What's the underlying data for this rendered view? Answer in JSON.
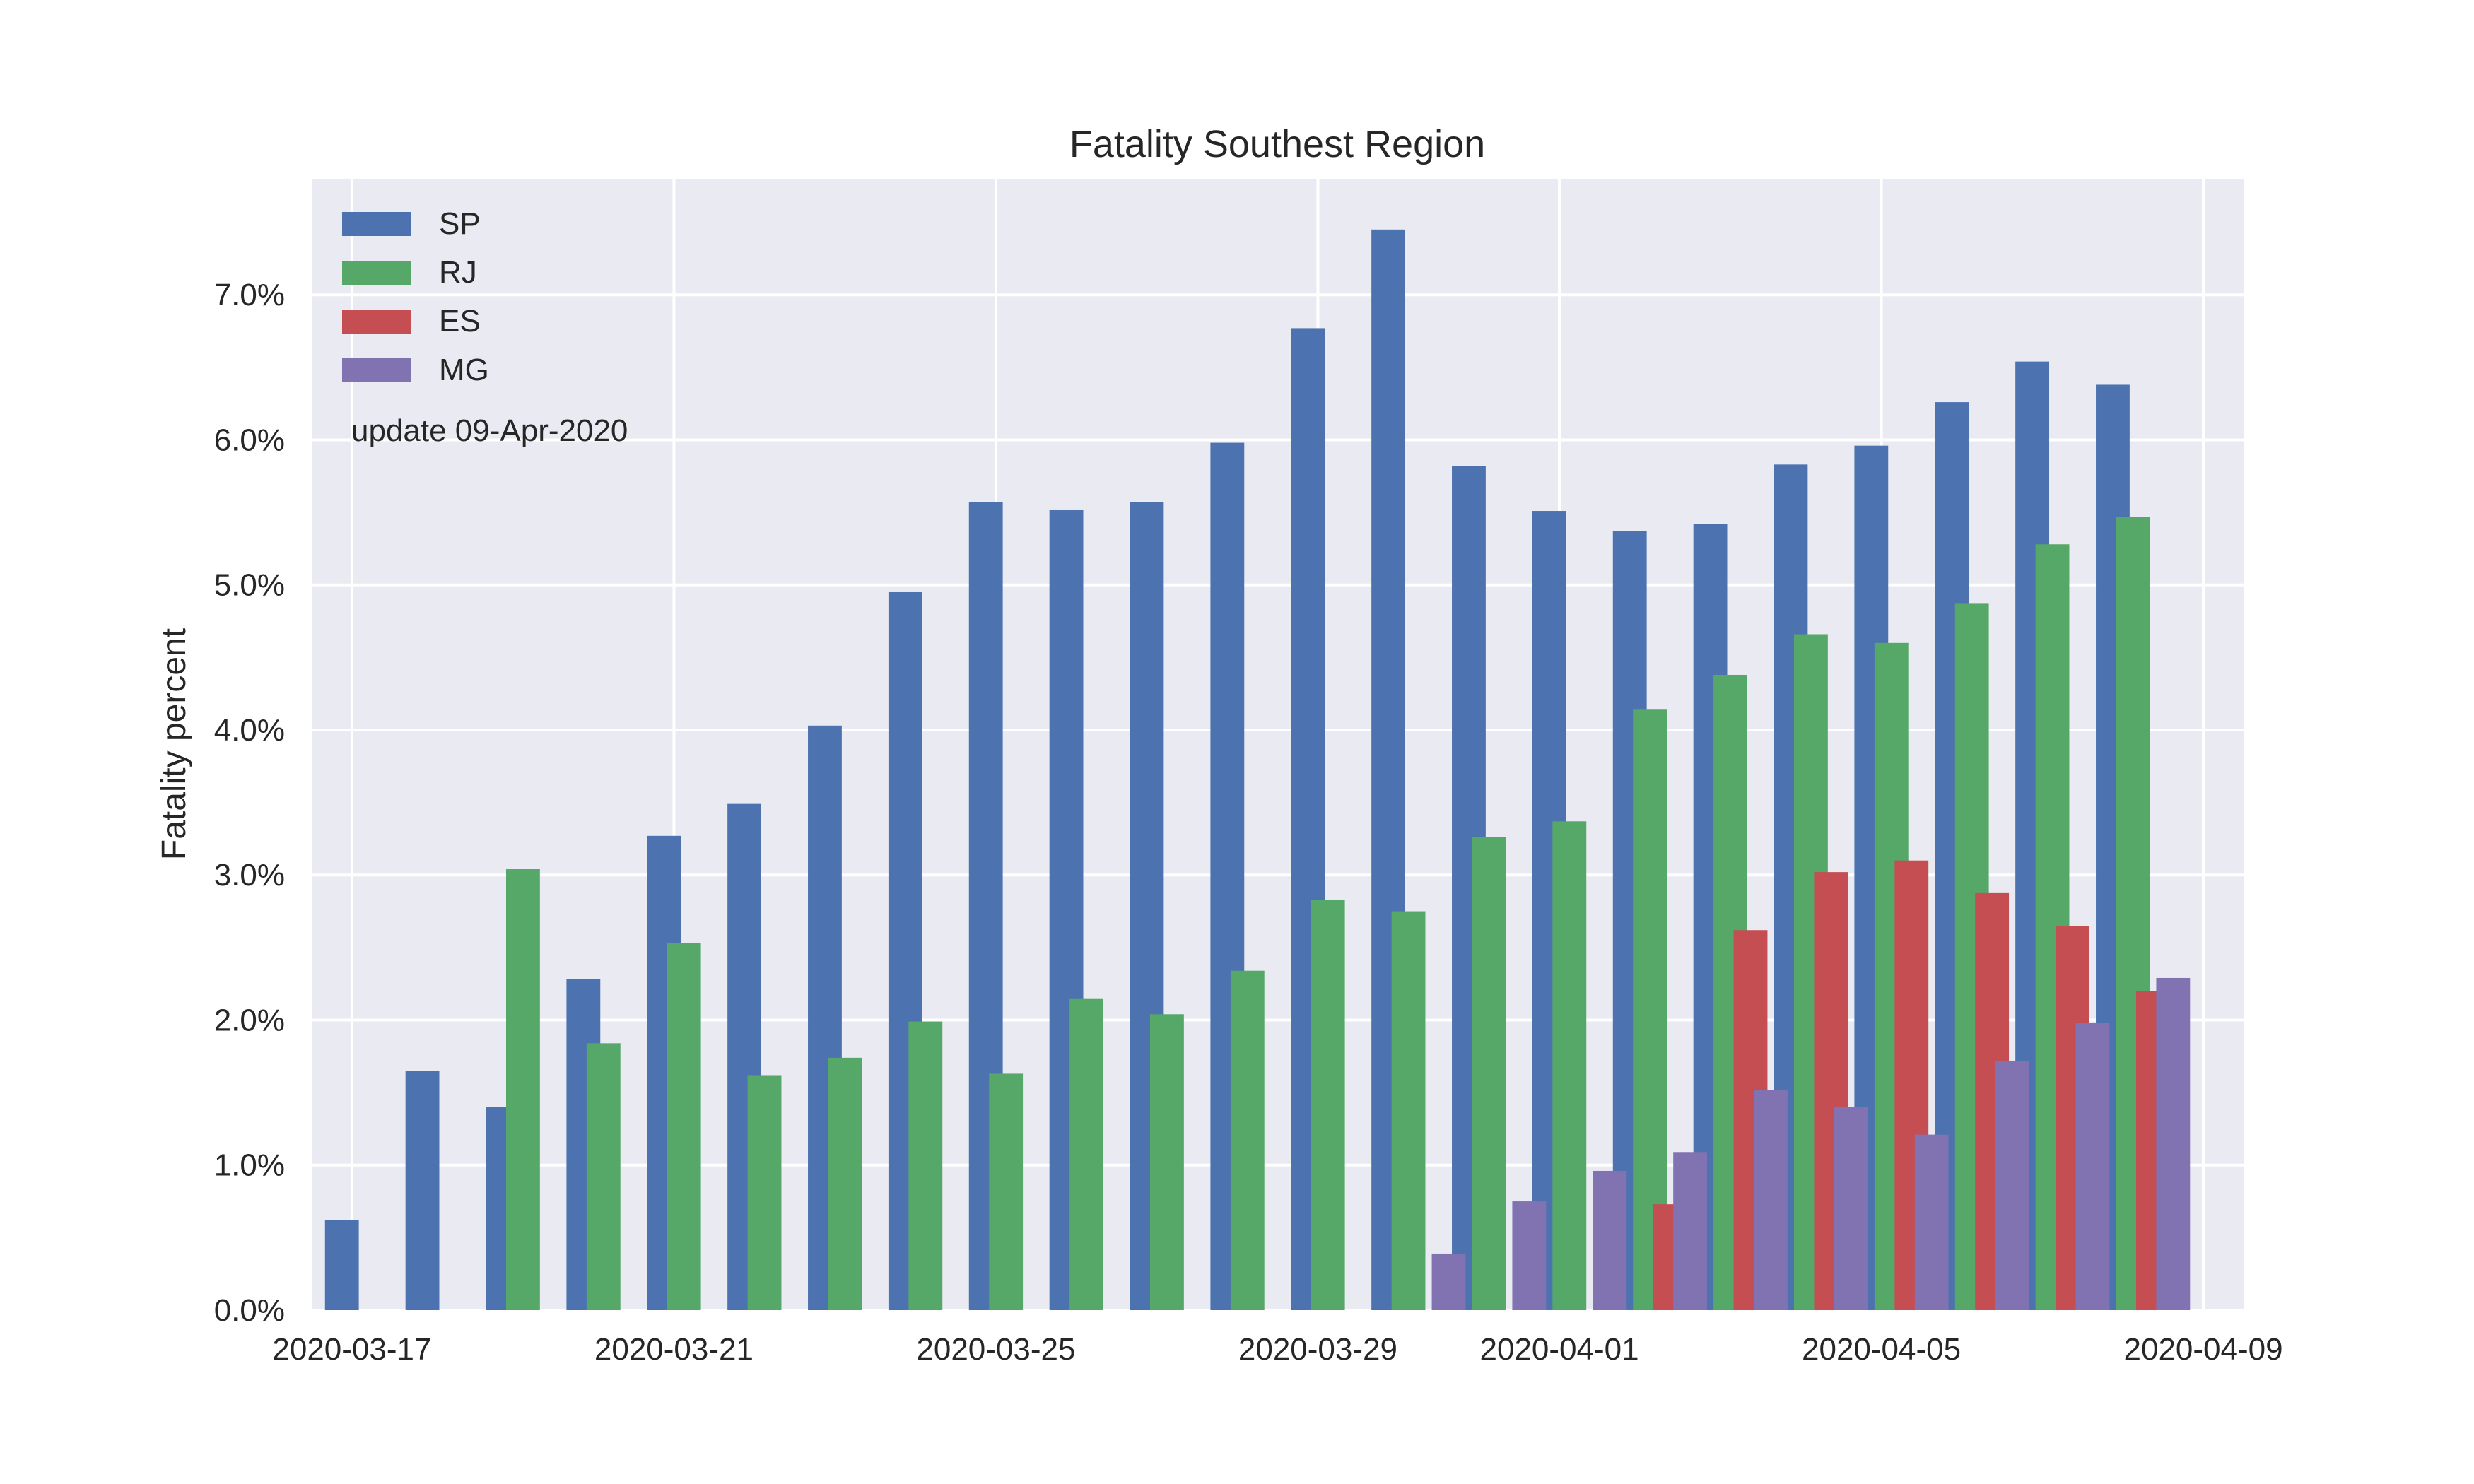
{
  "chart_data": {
    "type": "bar",
    "title": "Fatality Southest Region",
    "xlabel": "",
    "ylabel": "Fatality percent",
    "annotation": "update 09-Apr-2020",
    "legend_position": "top-left",
    "grid": true,
    "colors": {
      "background": "#EAEAF2",
      "grid": "#FFFFFF"
    },
    "ylim": [
      0,
      7.8
    ],
    "yticks": [
      0,
      1,
      2,
      3,
      4,
      5,
      6,
      7
    ],
    "ytick_labels": [
      "0.0%",
      "1.0%",
      "2.0%",
      "3.0%",
      "4.0%",
      "5.0%",
      "6.0%",
      "7.0%"
    ],
    "x_dates": [
      "2020-03-17",
      "2020-03-18",
      "2020-03-19",
      "2020-03-20",
      "2020-03-21",
      "2020-03-22",
      "2020-03-23",
      "2020-03-24",
      "2020-03-25",
      "2020-03-26",
      "2020-03-27",
      "2020-03-28",
      "2020-03-29",
      "2020-03-30",
      "2020-03-31",
      "2020-04-01",
      "2020-04-02",
      "2020-04-03",
      "2020-04-04",
      "2020-04-05",
      "2020-04-06",
      "2020-04-07",
      "2020-04-08"
    ],
    "xticks": [
      "2020-03-17",
      "2020-03-21",
      "2020-03-25",
      "2020-03-29",
      "2020-04-01",
      "2020-04-05",
      "2020-04-09"
    ],
    "series": [
      {
        "name": "SP",
        "color": "#4C72B0",
        "values": [
          0.62,
          1.65,
          1.4,
          2.28,
          3.27,
          3.49,
          4.03,
          4.95,
          5.57,
          5.52,
          5.57,
          5.98,
          6.77,
          7.45,
          5.82,
          5.51,
          5.37,
          5.42,
          5.83,
          5.96,
          6.26,
          6.54,
          6.38
        ]
      },
      {
        "name": "RJ",
        "color": "#55A868",
        "values": [
          null,
          null,
          3.04,
          1.84,
          2.53,
          1.62,
          1.74,
          1.99,
          1.63,
          2.15,
          2.04,
          2.34,
          2.83,
          2.75,
          3.26,
          3.37,
          4.14,
          4.38,
          4.66,
          4.6,
          4.87,
          5.28,
          5.47
        ]
      },
      {
        "name": "ES",
        "color": "#C44E52",
        "values": [
          null,
          null,
          null,
          null,
          null,
          null,
          null,
          null,
          null,
          null,
          null,
          null,
          null,
          null,
          null,
          null,
          0.73,
          2.62,
          3.02,
          3.1,
          2.88,
          2.65,
          2.2
        ]
      },
      {
        "name": "MG",
        "color": "#8172B2",
        "values": [
          null,
          null,
          null,
          null,
          null,
          null,
          null,
          null,
          null,
          null,
          null,
          null,
          null,
          0.39,
          0.75,
          0.96,
          1.09,
          1.52,
          1.4,
          1.21,
          1.72,
          1.98,
          2.29
        ]
      }
    ]
  }
}
